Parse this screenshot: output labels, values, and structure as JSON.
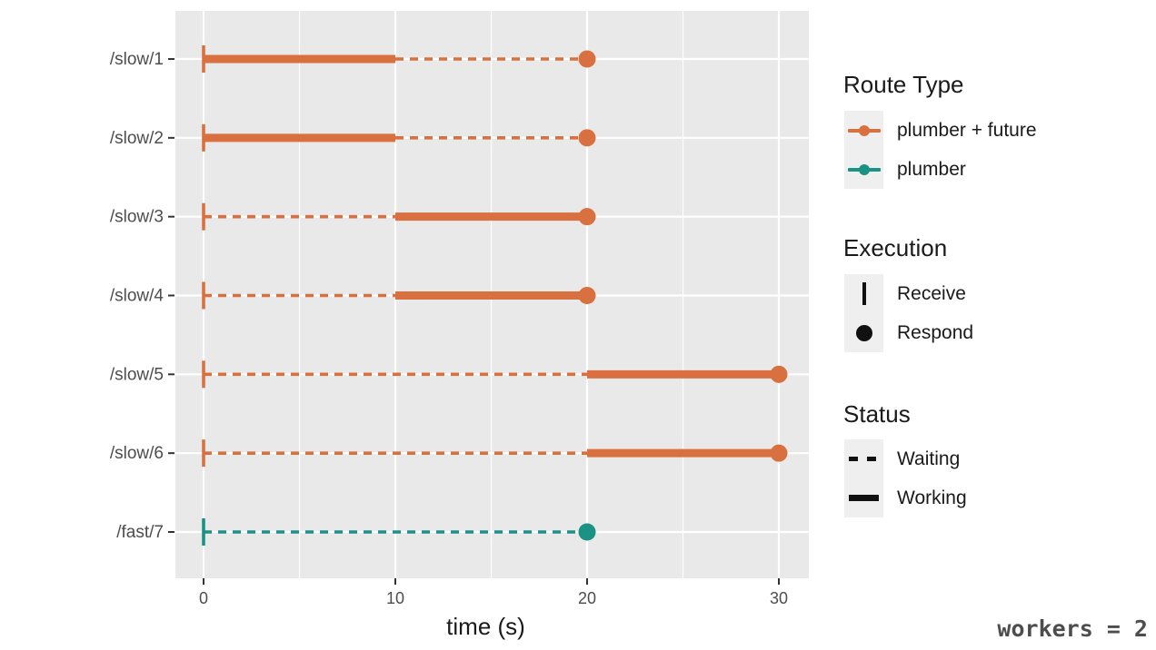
{
  "chart_data": {
    "type": "gantt",
    "title": "",
    "xlabel": "time (s)",
    "x_ticks": [
      0,
      10,
      20,
      30
    ],
    "x_minor_gridlines": [
      5,
      15,
      25
    ],
    "xlim": [
      -1.5,
      31.6
    ],
    "panel_bg": "#E9E9E9",
    "gridline_color": "#FFFFFF",
    "axis_text_color": "#4D4D4D",
    "axis_title_color": "#1A1A1A",
    "colors": {
      "plumber_future": "#D9703F",
      "plumber": "#1A9284"
    },
    "routes": [
      {
        "label": "/slow/1",
        "type": "plumber_future",
        "receive": 0,
        "respond": 20,
        "segments": [
          {
            "status": "Working",
            "start": 0,
            "end": 10
          },
          {
            "status": "Waiting",
            "start": 10,
            "end": 20
          }
        ]
      },
      {
        "label": "/slow/2",
        "type": "plumber_future",
        "receive": 0,
        "respond": 20,
        "segments": [
          {
            "status": "Working",
            "start": 0,
            "end": 10
          },
          {
            "status": "Waiting",
            "start": 10,
            "end": 20
          }
        ]
      },
      {
        "label": "/slow/3",
        "type": "plumber_future",
        "receive": 0,
        "respond": 20,
        "segments": [
          {
            "status": "Waiting",
            "start": 0,
            "end": 10
          },
          {
            "status": "Working",
            "start": 10,
            "end": 20
          }
        ]
      },
      {
        "label": "/slow/4",
        "type": "plumber_future",
        "receive": 0,
        "respond": 20,
        "segments": [
          {
            "status": "Waiting",
            "start": 0,
            "end": 10
          },
          {
            "status": "Working",
            "start": 10,
            "end": 20
          }
        ]
      },
      {
        "label": "/slow/5",
        "type": "plumber_future",
        "receive": 0,
        "respond": 30,
        "segments": [
          {
            "status": "Waiting",
            "start": 0,
            "end": 20
          },
          {
            "status": "Working",
            "start": 20,
            "end": 30
          }
        ]
      },
      {
        "label": "/slow/6",
        "type": "plumber_future",
        "receive": 0,
        "respond": 30,
        "segments": [
          {
            "status": "Waiting",
            "start": 0,
            "end": 20
          },
          {
            "status": "Working",
            "start": 20,
            "end": 30
          }
        ]
      },
      {
        "label": "/fast/7",
        "type": "plumber",
        "receive": 0,
        "respond": 20,
        "segments": [
          {
            "status": "Waiting",
            "start": 0,
            "end": 20
          }
        ]
      }
    ]
  },
  "legend": {
    "route_type": {
      "title": "Route Type",
      "items": [
        {
          "label": "plumber + future",
          "color": "#D9703F"
        },
        {
          "label": "plumber",
          "color": "#1A9284"
        }
      ]
    },
    "execution": {
      "title": "Execution",
      "items": [
        {
          "label": "Receive",
          "glyph": "vertical-bar"
        },
        {
          "label": "Respond",
          "glyph": "filled-dot"
        }
      ]
    },
    "status": {
      "title": "Status",
      "items": [
        {
          "label": "Waiting",
          "glyph": "dashed-line"
        },
        {
          "label": "Working",
          "glyph": "solid-line"
        }
      ]
    }
  },
  "caption": {
    "text": "workers = 2"
  }
}
